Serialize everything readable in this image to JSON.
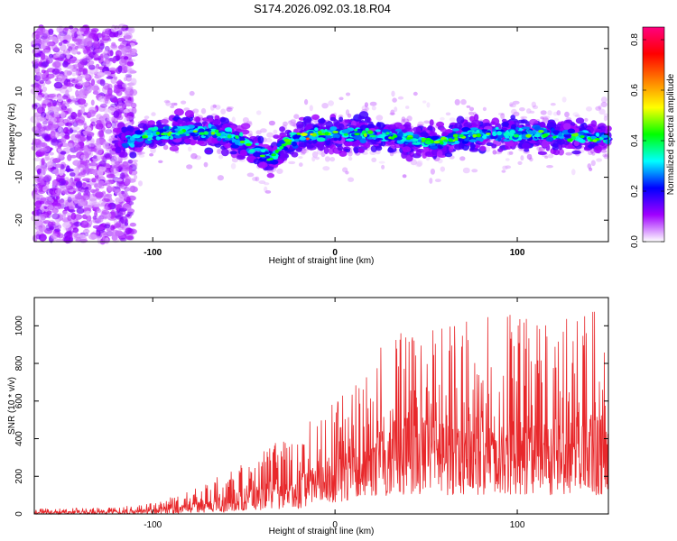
{
  "title": "S174.2026.092.03.18.R04",
  "chart_data": [
    {
      "type": "heatmap",
      "name": "spectrogram",
      "title": "S174.2026.092.03.18.R04",
      "xlabel": "Height of straight line (km)",
      "ylabel": "Frequency (Hz)",
      "xlim": [
        -165,
        150
      ],
      "ylim": [
        -25,
        25
      ],
      "xticks": [
        -100,
        0,
        100
      ],
      "yticks": [
        -20,
        -10,
        0,
        10,
        20
      ],
      "colorbar": {
        "label": "Normalized spectral amplitude",
        "range": [
          0.0,
          0.85
        ],
        "ticks": [
          "0.0",
          "0.2",
          "0.4",
          "0.6",
          "0.8"
        ],
        "colors": [
          "#ffffff",
          "#a000ff",
          "#0000ff",
          "#00ffff",
          "#00ff00",
          "#ffff00",
          "#ff8000",
          "#ff0000",
          "#ff0080"
        ]
      },
      "signal_band_center_hz": [
        {
          "x": -118,
          "y": -2
        },
        {
          "x": -100,
          "y": 0
        },
        {
          "x": -80,
          "y": 1
        },
        {
          "x": -60,
          "y": 0
        },
        {
          "x": -45,
          "y": -3
        },
        {
          "x": -35,
          "y": -6
        },
        {
          "x": -28,
          "y": -2
        },
        {
          "x": -15,
          "y": 0
        },
        {
          "x": 0,
          "y": 0
        },
        {
          "x": 25,
          "y": 0
        },
        {
          "x": 55,
          "y": -2
        },
        {
          "x": 75,
          "y": 0
        },
        {
          "x": 100,
          "y": 0
        },
        {
          "x": 125,
          "y": 0
        },
        {
          "x": 150,
          "y": -1
        }
      ]
    },
    {
      "type": "line",
      "name": "snr",
      "xlabel": "Height of straight line (km)",
      "ylabel": "SNR (10 * v/v)",
      "xlim": [
        -165,
        150
      ],
      "ylim": [
        0,
        1150
      ],
      "xticks": [
        -100,
        0,
        100
      ],
      "yticks": [
        0,
        200,
        400,
        600,
        800,
        1000
      ],
      "line_color": "#e8282b",
      "envelope": [
        {
          "x": -165,
          "lo": 0,
          "hi": 30
        },
        {
          "x": -120,
          "lo": 0,
          "hi": 35
        },
        {
          "x": -100,
          "lo": 0,
          "hi": 60
        },
        {
          "x": -80,
          "lo": 5,
          "hi": 120
        },
        {
          "x": -60,
          "lo": 10,
          "hi": 230
        },
        {
          "x": -40,
          "lo": 20,
          "hi": 330
        },
        {
          "x": -20,
          "lo": 30,
          "hi": 460
        },
        {
          "x": 0,
          "lo": 60,
          "hi": 600
        },
        {
          "x": 20,
          "lo": 80,
          "hi": 800
        },
        {
          "x": 35,
          "lo": 100,
          "hi": 1050
        },
        {
          "x": 60,
          "lo": 100,
          "hi": 1000
        },
        {
          "x": 80,
          "lo": 100,
          "hi": 1090
        },
        {
          "x": 100,
          "lo": 100,
          "hi": 1100
        },
        {
          "x": 120,
          "lo": 100,
          "hi": 1000
        },
        {
          "x": 145,
          "lo": 100,
          "hi": 1150
        },
        {
          "x": 150,
          "lo": 100,
          "hi": 850
        }
      ]
    }
  ]
}
